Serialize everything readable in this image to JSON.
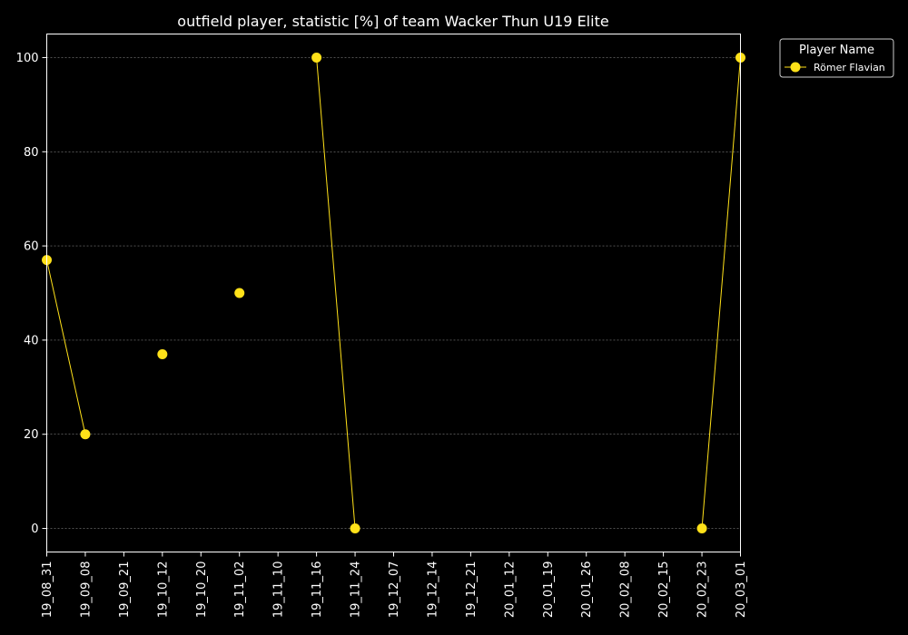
{
  "chart_data": {
    "type": "line",
    "title": "outfield player, statistic [%] of team Wacker Thun U19 Elite",
    "xlabel": "",
    "ylabel": "",
    "categories": [
      "19_08_31",
      "19_09_08",
      "19_09_21",
      "19_10_12",
      "19_10_20",
      "19_11_02",
      "19_11_10",
      "19_11_16",
      "19_11_24",
      "19_12_07",
      "19_12_14",
      "19_12_21",
      "20_01_12",
      "20_01_19",
      "20_01_26",
      "20_02_08",
      "20_02_15",
      "20_02_23",
      "20_03_01"
    ],
    "yticks": [
      0,
      20,
      40,
      60,
      80,
      100
    ],
    "ylim": [
      -5,
      105
    ],
    "grid": true,
    "legend_title": "Player Name",
    "legend_position": "outside-top-right",
    "series": [
      {
        "name": "Römer Flavian",
        "color": "#ffe119",
        "values": [
          57,
          20,
          null,
          37,
          null,
          50,
          null,
          100,
          0,
          null,
          null,
          null,
          null,
          null,
          null,
          null,
          null,
          0,
          100
        ]
      }
    ]
  }
}
